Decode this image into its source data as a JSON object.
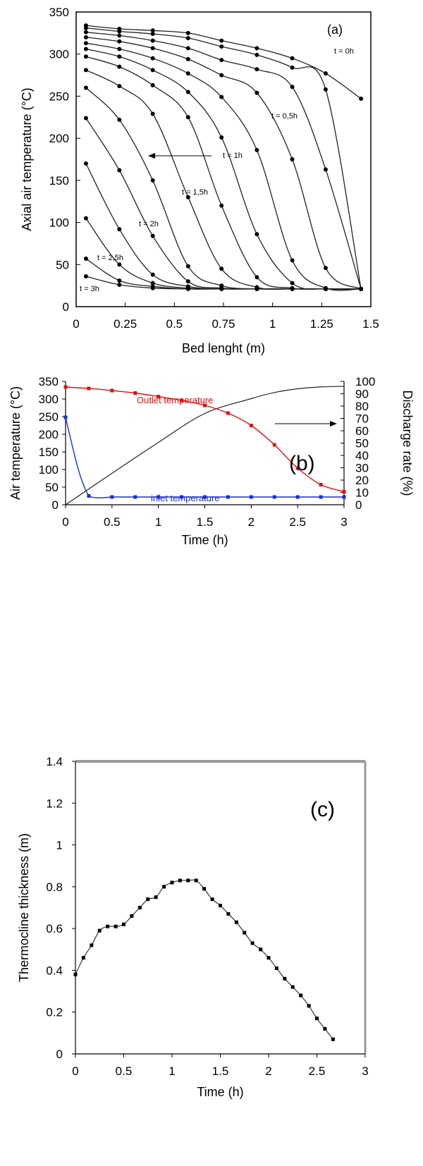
{
  "chart_data": [
    {
      "type": "line",
      "panel": "(a)",
      "xlabel": "Bed lenght (m)",
      "ylabel": "Axial air temperature (°C)",
      "xlim": [
        0,
        1.5
      ],
      "ylim": [
        0,
        350
      ],
      "xticks": [
        "0",
        "0.25",
        "0.5",
        "0.75",
        "1",
        "1.25",
        "1.5"
      ],
      "yticks": [
        "0",
        "50",
        "100",
        "150",
        "200",
        "250",
        "300",
        "350"
      ],
      "x": [
        0.05,
        0.22,
        0.39,
        0.57,
        0.74,
        0.92,
        1.1,
        1.27,
        1.45
      ],
      "series": [
        {
          "name": "t = 0h",
          "values": [
            334,
            330,
            328,
            325,
            316,
            307,
            295,
            277,
            247
          ]
        },
        {
          "values": [
            331,
            327,
            324,
            319,
            309,
            299,
            284,
            258,
            21
          ]
        },
        {
          "values": [
            326,
            322,
            316,
            307,
            293,
            282,
            261,
            163,
            21
          ]
        },
        {
          "name": "t = 0,5h",
          "values": [
            320,
            315,
            307,
            294,
            275,
            254,
            175,
            46,
            21
          ]
        },
        {
          "values": [
            313,
            306,
            295,
            277,
            249,
            186,
            55,
            22,
            21
          ]
        },
        {
          "values": [
            306,
            297,
            281,
            255,
            201,
            86,
            28,
            21,
            21
          ]
        },
        {
          "name": "t = 1h",
          "values": [
            297,
            285,
            263,
            225,
            120,
            35,
            22,
            21,
            21
          ]
        },
        {
          "values": [
            281,
            262,
            229,
            130,
            45,
            23,
            21,
            21,
            21
          ]
        },
        {
          "name": "t = 1,5h",
          "values": [
            260,
            222,
            150,
            48,
            25,
            21,
            21,
            21,
            21
          ]
        },
        {
          "values": [
            224,
            162,
            84,
            30,
            22,
            21,
            21,
            21,
            21
          ]
        },
        {
          "name": "t = 2h",
          "values": [
            170,
            92,
            38,
            24,
            21,
            21,
            21,
            21,
            21
          ]
        },
        {
          "values": [
            105,
            50,
            28,
            22,
            21,
            21,
            21,
            21,
            21
          ]
        },
        {
          "name": "t = 2,5h",
          "values": [
            57,
            31,
            24,
            21,
            21,
            21,
            21,
            21,
            21
          ]
        },
        {
          "name": "t = 3h",
          "values": [
            36,
            26,
            22,
            21,
            21,
            21,
            21,
            21,
            21
          ]
        }
      ],
      "annotations": [
        "(a)"
      ]
    },
    {
      "type": "line",
      "panel": "(b)",
      "xlabel": "Time (h)",
      "ylabel": "Air temperature (°C)",
      "y2label": "Discharge rate (%)",
      "xlim": [
        0,
        3
      ],
      "ylim": [
        0,
        350
      ],
      "y2lim": [
        0,
        100
      ],
      "xticks": [
        "0",
        "0.5",
        "1",
        "1.5",
        "2",
        "2.5",
        "3"
      ],
      "yticks": [
        "0",
        "50",
        "100",
        "150",
        "200",
        "250",
        "300",
        "350"
      ],
      "y2ticks": [
        "0",
        "10",
        "20",
        "30",
        "40",
        "50",
        "60",
        "70",
        "80",
        "90",
        "100"
      ],
      "series": [
        {
          "name": "Outlet temperature",
          "axis": "left",
          "x": [
            0,
            0.25,
            0.5,
            0.75,
            1,
            1.25,
            1.5,
            1.75,
            2,
            2.25,
            2.5,
            2.75,
            3
          ],
          "values": [
            334,
            330,
            324,
            317,
            307,
            296,
            282,
            260,
            225,
            170,
            104,
            57,
            37
          ]
        },
        {
          "name": "inlet temperature",
          "axis": "left",
          "x": [
            0,
            0.25,
            0.5,
            0.75,
            1,
            1.25,
            1.5,
            1.75,
            2,
            2.25,
            2.5,
            2.75,
            3
          ],
          "values": [
            248,
            25,
            22,
            22,
            22,
            22,
            22,
            22,
            22,
            22,
            22,
            22,
            22
          ]
        },
        {
          "axis": "right",
          "x": [
            0,
            0.5,
            1,
            1.5,
            2,
            2.25,
            2.5,
            2.75,
            3
          ],
          "values": [
            0,
            25.5,
            50.5,
            74,
            86,
            91,
            94,
            95.5,
            96
          ]
        }
      ],
      "annotations": [
        "Outlet temperature",
        "inlet temperature",
        "(b)"
      ]
    },
    {
      "type": "line",
      "panel": "(c)",
      "xlabel": "Time (h)",
      "ylabel": "Thermocline thickness (m)",
      "xlim": [
        0,
        3
      ],
      "ylim": [
        0,
        1.4
      ],
      "xticks": [
        "0",
        "0.5",
        "1",
        "1.5",
        "2",
        "2.5",
        "3"
      ],
      "yticks": [
        "0",
        "0.2",
        "0.4",
        "0.6",
        "0.8",
        "1",
        "1.2",
        "1.4"
      ],
      "series": [
        {
          "x": [
            0,
            0.083,
            0.167,
            0.25,
            0.333,
            0.417,
            0.5,
            0.583,
            0.667,
            0.75,
            0.833,
            0.917,
            1.0,
            1.083,
            1.167,
            1.25,
            1.333,
            1.417,
            1.5,
            1.583,
            1.667,
            1.75,
            1.833,
            1.917,
            2.0,
            2.083,
            2.167,
            2.25,
            2.333,
            2.417,
            2.5,
            2.583,
            2.667
          ],
          "values": [
            0.38,
            0.46,
            0.52,
            0.59,
            0.61,
            0.61,
            0.62,
            0.66,
            0.7,
            0.74,
            0.75,
            0.8,
            0.82,
            0.83,
            0.83,
            0.83,
            0.79,
            0.74,
            0.71,
            0.67,
            0.63,
            0.58,
            0.53,
            0.5,
            0.46,
            0.41,
            0.36,
            0.32,
            0.28,
            0.23,
            0.17,
            0.12,
            0.07
          ]
        }
      ],
      "annotations": [
        "(c)"
      ]
    }
  ]
}
